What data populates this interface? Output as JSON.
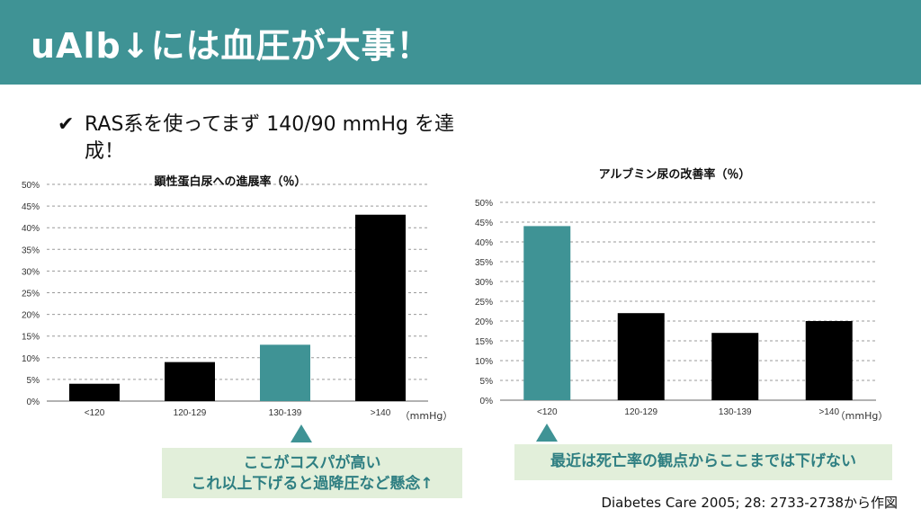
{
  "header": {
    "title": "uAlb↓には血圧が大事！"
  },
  "bullet": {
    "check_icon": "✔",
    "line1": "RAS系を使ってまず 140/90 mmHg を達",
    "line2": "成！"
  },
  "colors": {
    "header_bg": "#3f9395",
    "bar_black": "#000000",
    "bar_teal": "#3f9395",
    "callout_bg": "#e2efda"
  },
  "chart_data": [
    {
      "type": "bar",
      "title": "顕性蛋白尿への進展率（％）",
      "categories": [
        "<120",
        "120-129",
        "130-139",
        ">140"
      ],
      "values": [
        4,
        9,
        13,
        43
      ],
      "highlight_index": 2,
      "unit_label": "（mmHg）",
      "yticks": [
        "0%",
        "5%",
        "10%",
        "15%",
        "20%",
        "25%",
        "30%",
        "35%",
        "40%",
        "45%",
        "50%"
      ],
      "ylim": [
        0,
        50
      ]
    },
    {
      "type": "bar",
      "title": "アルブミン尿の改善率（％）",
      "categories": [
        "<120",
        "120-129",
        "130-139",
        ">140"
      ],
      "values": [
        44,
        22,
        17,
        20
      ],
      "highlight_index": 0,
      "unit_label": "（mmHg）",
      "yticks": [
        "0%",
        "5%",
        "10%",
        "15%",
        "20%",
        "25%",
        "30%",
        "35%",
        "40%",
        "45%",
        "50%"
      ],
      "ylim": [
        0,
        50
      ]
    }
  ],
  "callouts": {
    "left_line1": "ここがコスパが高い",
    "left_line2": "これ以上下げると過降圧など懸念↑",
    "right": "最近は死亡率の観点からここまでは下げない"
  },
  "source": "Diabetes Care 2005; 28: 2733-2738から作図"
}
